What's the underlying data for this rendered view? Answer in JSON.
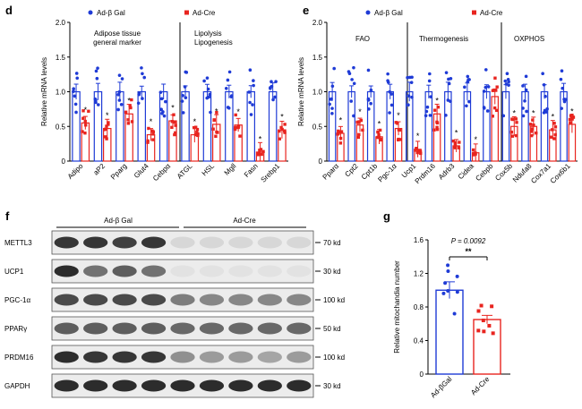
{
  "panels": {
    "d": "d",
    "e": "e",
    "f": "f",
    "g": "g"
  },
  "colors": {
    "control": "#1f3bd6",
    "treated": "#e8241f",
    "blot_bg": "#ececec",
    "band": "#222222"
  },
  "legend": {
    "control_label": "Ad-β Gal",
    "treated_label": "Ad-Cre"
  },
  "chart_data": [
    {
      "panel": "d",
      "type": "bar",
      "ylabel": "Relative mRNA levels",
      "ylim": [
        0,
        2.0
      ],
      "yticks": [
        "0",
        "0.5",
        "1.0",
        "1.5",
        "2.0"
      ],
      "categories": [
        "Adipo",
        "aP2",
        "Pparg",
        "Glut4",
        "Cebpα",
        "ATGL",
        "HSL",
        "Mgll",
        "Fasn",
        "Srebp1"
      ],
      "series": [
        {
          "name": "Ad-β Gal",
          "values": [
            1.0,
            1.0,
            1.0,
            1.0,
            1.0,
            1.0,
            1.0,
            1.0,
            1.0,
            1.0
          ]
        },
        {
          "name": "Ad-Cre",
          "values": [
            0.55,
            0.47,
            0.68,
            0.38,
            0.58,
            0.38,
            0.53,
            0.52,
            0.13,
            0.45
          ]
        }
      ],
      "annotations": [
        "Adipose tissue\ngeneral marker",
        "Lipolysis\nLipogenesis"
      ],
      "significance": [
        "*",
        "*",
        "*",
        "*",
        "*",
        "*",
        "*",
        "*",
        "*",
        "*"
      ]
    },
    {
      "panel": "e",
      "type": "bar",
      "ylabel": "Relative mRNA levels",
      "ylim": [
        0,
        2.0
      ],
      "yticks": [
        "0",
        "0.5",
        "1.0",
        "1.5",
        "2.0"
      ],
      "categories": [
        "Pparα",
        "Cpt2",
        "Cpt1b",
        "Pgc-1α",
        "Ucp1",
        "Prdm16",
        "Adrb3",
        "Cidea",
        "Cebpb",
        "Cox5b",
        "Ndufa8",
        "Cox7a1",
        "Cox6b1"
      ],
      "series": [
        {
          "name": "Ad-β Gal",
          "values": [
            1.0,
            1.0,
            1.0,
            1.0,
            1.0,
            1.0,
            1.0,
            1.0,
            1.0,
            1.0,
            1.0,
            1.0,
            1.0
          ]
        },
        {
          "name": "Ad-Cre",
          "values": [
            0.4,
            0.52,
            0.35,
            0.47,
            0.17,
            0.68,
            0.22,
            0.12,
            0.93,
            0.5,
            0.5,
            0.45,
            0.53
          ]
        }
      ],
      "annotations": [
        "FAO",
        "Thermogenesis",
        "OXPHOS"
      ],
      "significance": [
        "*",
        "*",
        "*",
        "*",
        "*",
        "*",
        "*",
        "*",
        "",
        "*",
        "*",
        "*",
        "*"
      ]
    },
    {
      "panel": "g",
      "type": "bar",
      "ylabel": "Relative mitochandia number",
      "ylim": [
        0,
        1.6
      ],
      "yticks": [
        "0",
        "0.4",
        "0.8",
        "1.2",
        "1.6"
      ],
      "categories": [
        "Ad-βGal",
        "Ad-Cre"
      ],
      "values": [
        1.0,
        0.65
      ],
      "errors": [
        0.1,
        0.05
      ],
      "p_value": "P = 0.0092",
      "significance": "**"
    }
  ],
  "blot": {
    "group_labels": [
      "Ad-β Gal",
      "Ad-Cre"
    ],
    "rows": [
      {
        "label": "METTL3",
        "marker": "70 kd"
      },
      {
        "label": "UCP1",
        "marker": "30 kd"
      },
      {
        "label": "PGC-1α",
        "marker": "100 kd"
      },
      {
        "label": "PPARγ",
        "marker": "50 kd"
      },
      {
        "label": "PRDM16",
        "marker": "100 kd"
      },
      {
        "label": "GAPDH",
        "marker": "30 kd"
      }
    ],
    "band_intensity": [
      [
        0.9,
        0.9,
        0.85,
        0.9,
        0.1,
        0.1,
        0.1,
        0.1,
        0.1
      ],
      [
        0.95,
        0.6,
        0.7,
        0.6,
        0.05,
        0.05,
        0.05,
        0.05,
        0.05
      ],
      [
        0.8,
        0.8,
        0.8,
        0.8,
        0.55,
        0.5,
        0.5,
        0.5,
        0.5
      ],
      [
        0.7,
        0.7,
        0.7,
        0.7,
        0.65,
        0.65,
        0.65,
        0.65,
        0.65
      ],
      [
        0.95,
        0.9,
        0.9,
        0.9,
        0.45,
        0.4,
        0.4,
        0.35,
        0.4
      ],
      [
        0.95,
        0.95,
        0.95,
        0.95,
        0.95,
        0.95,
        0.95,
        0.95,
        0.95
      ]
    ]
  }
}
